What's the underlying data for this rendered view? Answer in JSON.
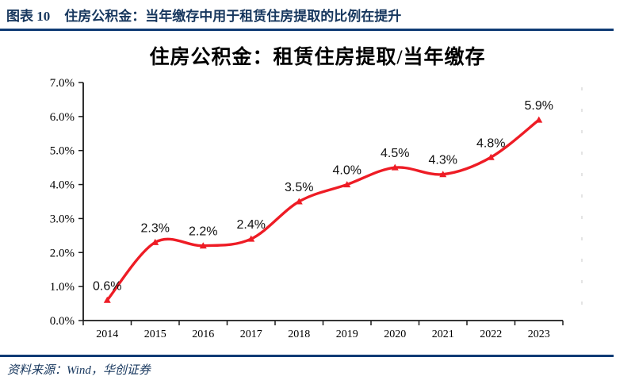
{
  "header": {
    "label": "图表 10",
    "title": "住房公积金：当年缴存中用于租赁住房提取的比例在提升"
  },
  "chart_data": {
    "type": "line",
    "title": "住房公积金：租赁住房提取/当年缴存",
    "categories": [
      "2014",
      "2015",
      "2016",
      "2017",
      "2018",
      "2019",
      "2020",
      "2021",
      "2022",
      "2023"
    ],
    "values": [
      0.6,
      2.3,
      2.2,
      2.4,
      3.5,
      4.0,
      4.5,
      4.3,
      4.8,
      5.9
    ],
    "point_labels": [
      "0.6%",
      "2.3%",
      "2.2%",
      "2.4%",
      "3.5%",
      "4.0%",
      "4.5%",
      "4.3%",
      "4.8%",
      "5.9%"
    ],
    "xlabel": "",
    "ylabel": "",
    "ylim": [
      0,
      7
    ],
    "y_tick_step": 1,
    "y_tick_labels": [
      "0.0%",
      "1.0%",
      "2.0%",
      "3.0%",
      "4.0%",
      "5.0%",
      "6.0%",
      "7.0%"
    ],
    "grid": false,
    "legend": false,
    "smooth": true,
    "line_color": "#EE1C25",
    "marker": "triangle-up"
  },
  "footer": {
    "source": "资料来源：Wind，华创证券"
  },
  "colors": {
    "header_navy": "#17375E",
    "rule_navy": "#0F3B75",
    "line_red": "#EE1C25",
    "axis_black": "#1a1a1a"
  }
}
